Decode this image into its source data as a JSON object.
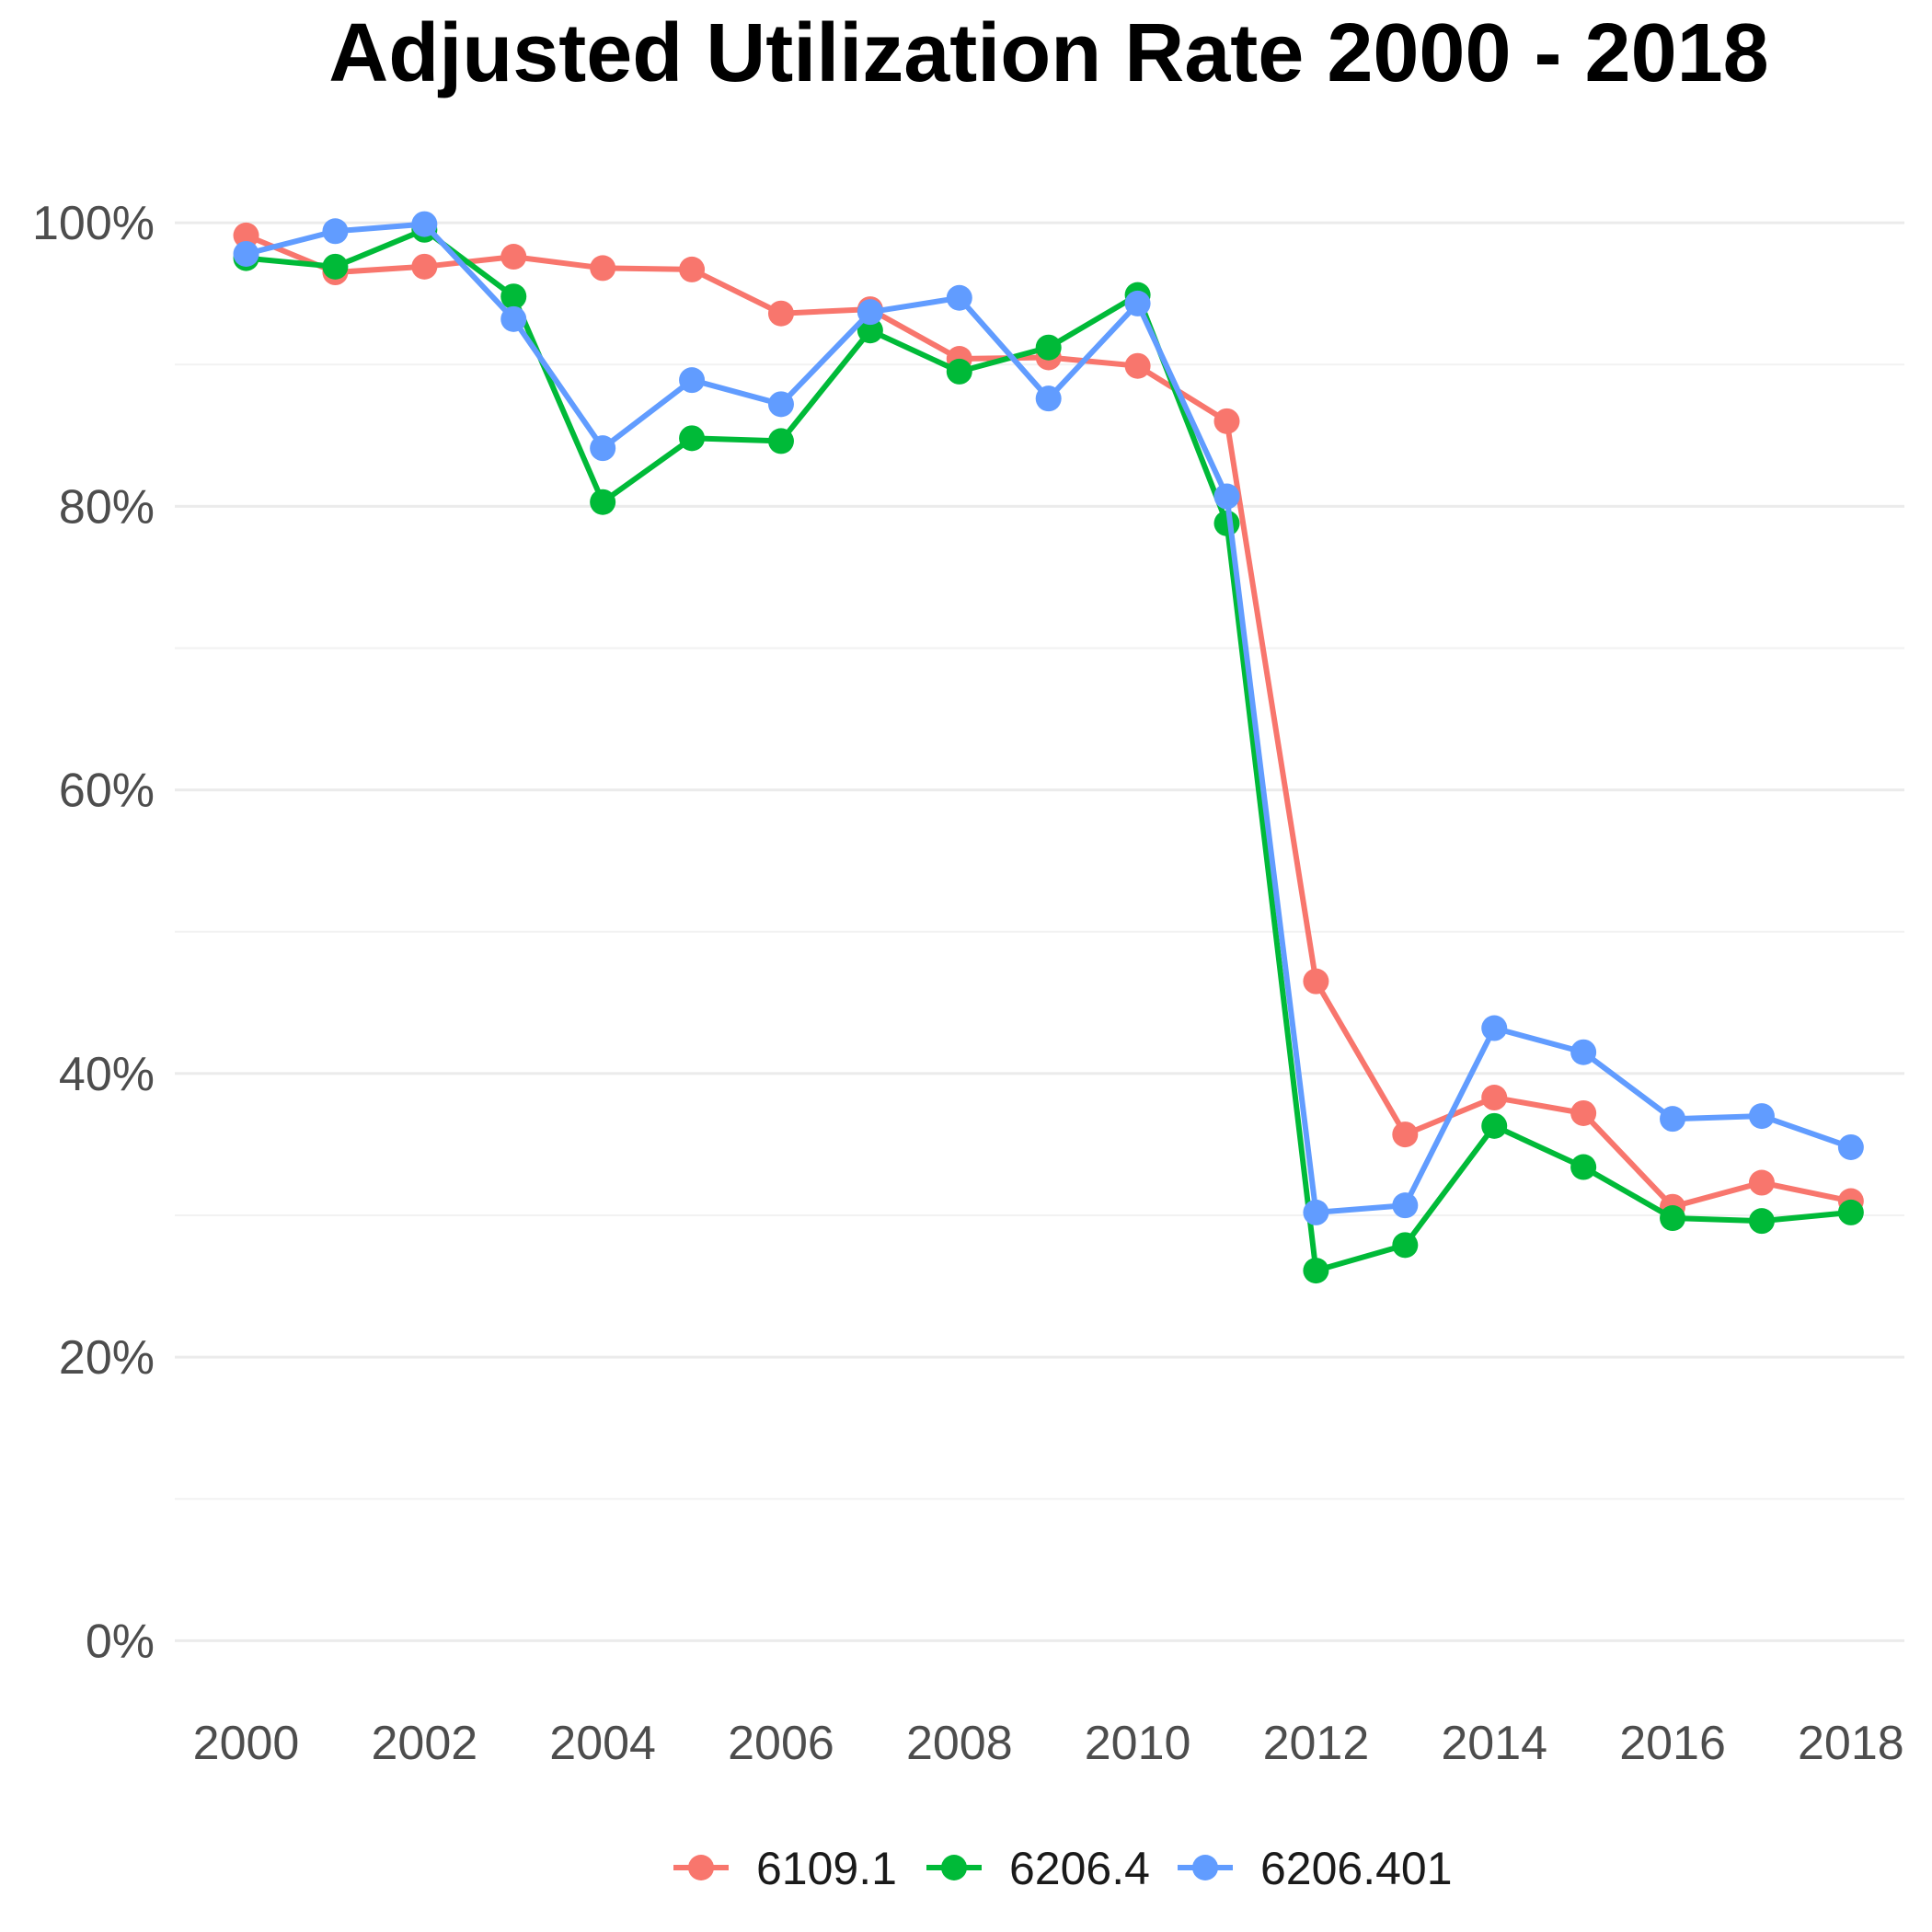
{
  "chart_data": {
    "type": "line",
    "title": "Adjusted Utilization Rate 2000 - 2018",
    "xlabel": "",
    "ylabel": "",
    "x": [
      2000,
      2001,
      2002,
      2003,
      2004,
      2005,
      2006,
      2007,
      2008,
      2009,
      2010,
      2011,
      2012,
      2013,
      2014,
      2015,
      2016,
      2017,
      2018
    ],
    "x_ticks": [
      2000,
      2002,
      2004,
      2006,
      2008,
      2010,
      2012,
      2014,
      2016,
      2018
    ],
    "x_tick_labels": [
      "2000",
      "2002",
      "2004",
      "2006",
      "2008",
      "2010",
      "2012",
      "2014",
      "2016",
      "2018"
    ],
    "xlim": [
      1999.2,
      2018.6
    ],
    "y_ticks": [
      0,
      20,
      40,
      60,
      80,
      100
    ],
    "y_tick_labels": [
      "0%",
      "20%",
      "40%",
      "60%",
      "80%",
      "100%"
    ],
    "ylim": [
      -4,
      105
    ],
    "grid": true,
    "legend_position": "bottom",
    "series": [
      {
        "name": "6109.1",
        "color": "#F8766D",
        "values": [
          99.1,
          96.5,
          96.9,
          97.6,
          96.8,
          96.7,
          93.6,
          93.9,
          90.4,
          90.5,
          89.9,
          86.0,
          46.5,
          35.7,
          38.3,
          37.2,
          30.6,
          32.3,
          31.0
        ]
      },
      {
        "name": "6206.4",
        "color": "#00BA38",
        "values": [
          97.5,
          96.9,
          99.5,
          94.8,
          80.3,
          84.8,
          84.6,
          92.4,
          89.5,
          91.2,
          94.9,
          78.8,
          26.1,
          27.9,
          36.3,
          33.4,
          29.8,
          29.6,
          30.2
        ]
      },
      {
        "name": "6206.401",
        "color": "#619CFF",
        "values": [
          97.8,
          99.4,
          99.9,
          93.2,
          84.1,
          88.9,
          87.2,
          93.7,
          94.7,
          87.6,
          94.3,
          80.7,
          30.2,
          30.7,
          43.2,
          41.5,
          36.8,
          37.0,
          34.8
        ]
      }
    ]
  }
}
